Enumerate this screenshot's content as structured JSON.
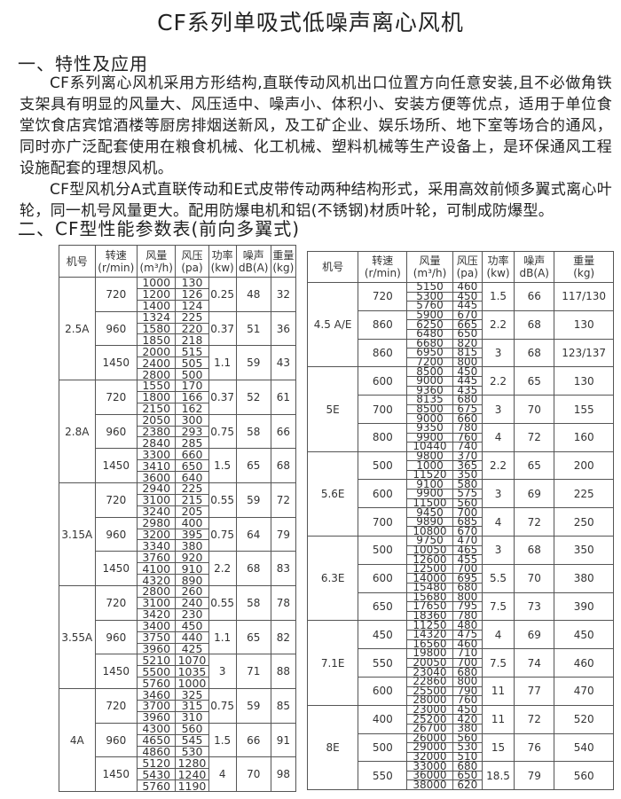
{
  "title": "CF系列单吸式低噪声离心风机",
  "section1": {
    "heading": "一、特性及应用",
    "p1": "CF系列离心风机采用方形结构,直联传动风机出口位置方向任意安装,且不必做角铁支架具有明显的风量大、风压适中、噪声小、体积小、安装方便等优点，适用于单位食堂饮食店宾馆酒楼等厨房排烟送新风，及工矿企业、娱乐场所、地下室等场合的通风，同时亦广泛配套使用在粮食机械、化工机械、塑料机械等生产设备上，是环保通风工程设施配套的理想风机。",
    "p2": "CF型风机分A式直联传动和E式皮带传动两种结构形式，采用高效前倾多翼式离心叶轮，同一机号风量更大。配用防爆电机和铝(不锈钢)材质叶轮，可制成防爆型。"
  },
  "section2": {
    "heading": "二、CF型性能参数表(前向多翼式)"
  },
  "columns": [
    [
      "机号",
      ""
    ],
    [
      "转速",
      "(r/min)"
    ],
    [
      "风量",
      "(m³/h)"
    ],
    [
      "风压",
      "(pa)"
    ],
    [
      "功率",
      "(kw)"
    ],
    [
      "噪声",
      "dB(A)"
    ],
    [
      "重量",
      "(kg)"
    ]
  ],
  "left_table": [
    {
      "model": "2.5A",
      "speeds": [
        {
          "rpm": "720",
          "flow": [
            "1000",
            "1200",
            "1400"
          ],
          "pressure": [
            "130",
            "126",
            "124"
          ],
          "power": "0.25",
          "noise": "48",
          "weight": "32"
        },
        {
          "rpm": "960",
          "flow": [
            "1324",
            "1580",
            "1850"
          ],
          "pressure": [
            "225",
            "220",
            "218"
          ],
          "power": "0.37",
          "noise": "51",
          "weight": "36"
        },
        {
          "rpm": "1450",
          "flow": [
            "2000",
            "2400",
            "2800"
          ],
          "pressure": [
            "515",
            "505",
            "500"
          ],
          "power": "1.1",
          "noise": "59",
          "weight": "43"
        }
      ]
    },
    {
      "model": "2.8A",
      "speeds": [
        {
          "rpm": "720",
          "flow": [
            "1550",
            "1800",
            "2150"
          ],
          "pressure": [
            "170",
            "166",
            "162"
          ],
          "power": "0.37",
          "noise": "52",
          "weight": "61"
        },
        {
          "rpm": "960",
          "flow": [
            "2050",
            "2380",
            "2840"
          ],
          "pressure": [
            "300",
            "293",
            "285"
          ],
          "power": "0.75",
          "noise": "58",
          "weight": "66"
        },
        {
          "rpm": "1450",
          "flow": [
            "3300",
            "3410",
            "3600"
          ],
          "pressure": [
            "660",
            "650",
            "640"
          ],
          "power": "1.5",
          "noise": "65",
          "weight": "68"
        }
      ]
    },
    {
      "model": "3.15A",
      "speeds": [
        {
          "rpm": "720",
          "flow": [
            "2940",
            "3100",
            "3240"
          ],
          "pressure": [
            "225",
            "215",
            "205"
          ],
          "power": "0.55",
          "noise": "59",
          "weight": "72"
        },
        {
          "rpm": "960",
          "flow": [
            "2980",
            "3200",
            "3340"
          ],
          "pressure": [
            "400",
            "395",
            "380"
          ],
          "power": "0.75",
          "noise": "64",
          "weight": "79"
        },
        {
          "rpm": "1450",
          "flow": [
            "3760",
            "4100",
            "4320"
          ],
          "pressure": [
            "920",
            "910",
            "890"
          ],
          "power": "2.2",
          "noise": "68",
          "weight": "83"
        }
      ]
    },
    {
      "model": "3.55A",
      "speeds": [
        {
          "rpm": "720",
          "flow": [
            "2800",
            "3100",
            "3420"
          ],
          "pressure": [
            "260",
            "240",
            "230"
          ],
          "power": "0.55",
          "noise": "58",
          "weight": "78"
        },
        {
          "rpm": "960",
          "flow": [
            "3400",
            "3750",
            "3960"
          ],
          "pressure": [
            "450",
            "440",
            "425"
          ],
          "power": "1.1",
          "noise": "65",
          "weight": "82"
        },
        {
          "rpm": "1450",
          "flow": [
            "5210",
            "5500",
            "5760"
          ],
          "pressure": [
            "1070",
            "1035",
            "1000"
          ],
          "power": "3",
          "noise": "71",
          "weight": "88"
        }
      ]
    },
    {
      "model": "4A",
      "speeds": [
        {
          "rpm": "720",
          "flow": [
            "3460",
            "3700",
            "3960"
          ],
          "pressure": [
            "325",
            "315",
            "310"
          ],
          "power": "0.75",
          "noise": "59",
          "weight": "85"
        },
        {
          "rpm": "960",
          "flow": [
            "4300",
            "4650",
            "4860"
          ],
          "pressure": [
            "560",
            "545",
            "530"
          ],
          "power": "1.5",
          "noise": "66",
          "weight": "91"
        },
        {
          "rpm": "1450",
          "flow": [
            "5120",
            "5430",
            "5760"
          ],
          "pressure": [
            "1280",
            "1240",
            "1190"
          ],
          "power": "4",
          "noise": "70",
          "weight": "98"
        }
      ]
    }
  ],
  "right_table": [
    {
      "model": "4.5 A/E",
      "speeds": [
        {
          "rpm": "720",
          "flow": [
            "5150",
            "5300",
            "5760"
          ],
          "pressure": [
            "460",
            "450",
            "445"
          ],
          "power": "1.5",
          "noise": "66",
          "weight": "117/130"
        },
        {
          "rpm": "860",
          "flow": [
            "5900",
            "6250",
            "6480"
          ],
          "pressure": [
            "670",
            "665",
            "650"
          ],
          "power": "2.2",
          "noise": "68",
          "weight": "130"
        },
        {
          "rpm": "860",
          "flow": [
            "6680",
            "6950",
            "7200"
          ],
          "pressure": [
            "820",
            "815",
            "800"
          ],
          "power": "3",
          "noise": "68",
          "weight": "123/137"
        }
      ]
    },
    {
      "model": "5E",
      "speeds": [
        {
          "rpm": "600",
          "flow": [
            "8500",
            "9000",
            "9360"
          ],
          "pressure": [
            "450",
            "445",
            "435"
          ],
          "power": "2.2",
          "noise": "65",
          "weight": "130"
        },
        {
          "rpm": "700",
          "flow": [
            "8135",
            "8500",
            "9000"
          ],
          "pressure": [
            "680",
            "675",
            "660"
          ],
          "power": "3",
          "noise": "70",
          "weight": "155"
        },
        {
          "rpm": "800",
          "flow": [
            "9350",
            "9900",
            "10440"
          ],
          "pressure": [
            "780",
            "760",
            "740"
          ],
          "power": "4",
          "noise": "72",
          "weight": "160"
        }
      ]
    },
    {
      "model": "5.6E",
      "speeds": [
        {
          "rpm": "500",
          "flow": [
            "9800",
            "1000",
            "11520"
          ],
          "pressure": [
            "370",
            "365",
            "350"
          ],
          "power": "2.2",
          "noise": "65",
          "weight": "200"
        },
        {
          "rpm": "600",
          "flow": [
            "9100",
            "9900",
            "11500"
          ],
          "pressure": [
            "580",
            "575",
            "560"
          ],
          "power": "3",
          "noise": "69",
          "weight": "225"
        },
        {
          "rpm": "700",
          "flow": [
            "9450",
            "9890",
            "10800"
          ],
          "pressure": [
            "700",
            "685",
            "670"
          ],
          "power": "4",
          "noise": "72",
          "weight": "250"
        }
      ]
    },
    {
      "model": "6.3E",
      "speeds": [
        {
          "rpm": "500",
          "flow": [
            "9750",
            "10050",
            "12600"
          ],
          "pressure": [
            "470",
            "465",
            "455"
          ],
          "power": "3",
          "noise": "68",
          "weight": "350"
        },
        {
          "rpm": "600",
          "flow": [
            "12500",
            "14000",
            "15480"
          ],
          "pressure": [
            "700",
            "695",
            "680"
          ],
          "power": "5.5",
          "noise": "70",
          "weight": "380"
        },
        {
          "rpm": "650",
          "flow": [
            "15680",
            "17650",
            "18360"
          ],
          "pressure": [
            "800",
            "795",
            "780"
          ],
          "power": "7.5",
          "noise": "73",
          "weight": "390"
        }
      ]
    },
    {
      "model": "7.1E",
      "speeds": [
        {
          "rpm": "450",
          "flow": [
            "11250",
            "14320",
            "16560"
          ],
          "pressure": [
            "480",
            "475",
            "460"
          ],
          "power": "4",
          "noise": "69",
          "weight": "450"
        },
        {
          "rpm": "550",
          "flow": [
            "19800",
            "20050",
            "23040"
          ],
          "pressure": [
            "710",
            "700",
            "680"
          ],
          "power": "7.5",
          "noise": "74",
          "weight": "460"
        },
        {
          "rpm": "600",
          "flow": [
            "22860",
            "25500",
            "28000"
          ],
          "pressure": [
            "800",
            "790",
            "760"
          ],
          "power": "11",
          "noise": "77",
          "weight": "470"
        }
      ]
    },
    {
      "model": "8E",
      "speeds": [
        {
          "rpm": "400",
          "flow": [
            "23000",
            "25200",
            "26700"
          ],
          "pressure": [
            "450",
            "420",
            "380"
          ],
          "power": "11",
          "noise": "72",
          "weight": "520"
        },
        {
          "rpm": "500",
          "flow": [
            "26000",
            "29000",
            "32000"
          ],
          "pressure": [
            "560",
            "530",
            "510"
          ],
          "power": "15",
          "noise": "76",
          "weight": "540"
        },
        {
          "rpm": "550",
          "flow": [
            "33000",
            "36000",
            "38000"
          ],
          "pressure": [
            "680",
            "650",
            "620"
          ],
          "power": "18.5",
          "noise": "79",
          "weight": "560"
        }
      ]
    }
  ]
}
